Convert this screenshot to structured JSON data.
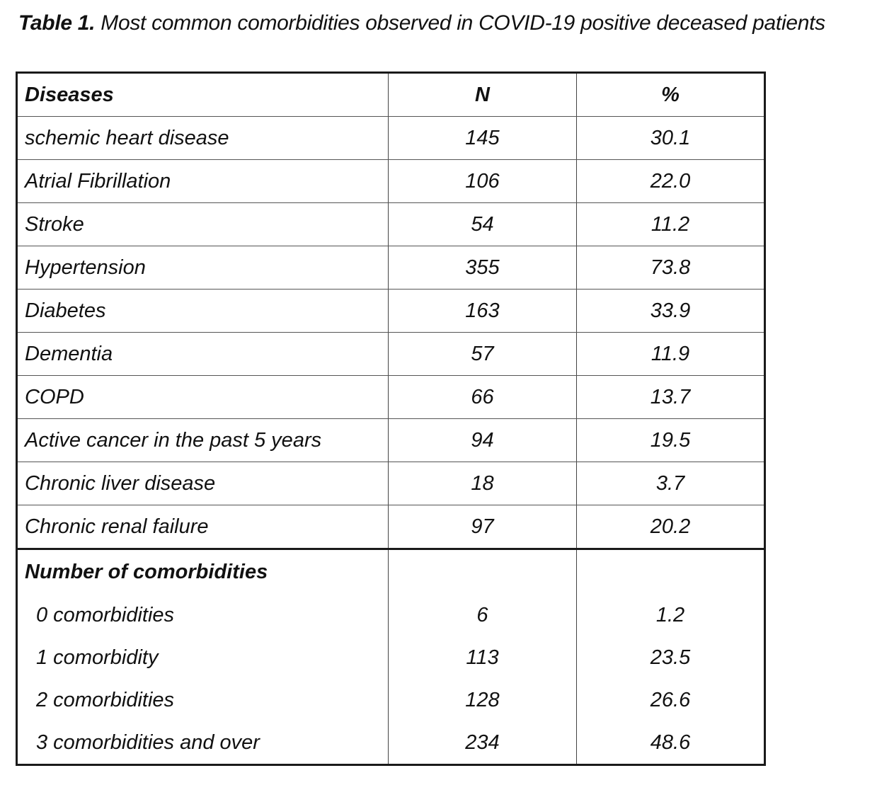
{
  "caption": {
    "label": "Table 1.",
    "text": "Most common comorbidities observed in COVID-19 positive deceased patients"
  },
  "table": {
    "headers": [
      "Diseases",
      "N",
      "%"
    ],
    "diseases": [
      {
        "name": "schemic heart disease",
        "n": "145",
        "pct": "30.1"
      },
      {
        "name": "Atrial Fibrillation",
        "n": "106",
        "pct": "22.0"
      },
      {
        "name": "Stroke",
        "n": "54",
        "pct": "11.2"
      },
      {
        "name": "Hypertension",
        "n": "355",
        "pct": "73.8"
      },
      {
        "name": "Diabetes",
        "n": "163",
        "pct": "33.9"
      },
      {
        "name": "Dementia",
        "n": "57",
        "pct": "11.9"
      },
      {
        "name": "COPD",
        "n": "66",
        "pct": "13.7"
      },
      {
        "name": "Active cancer in the past 5 years",
        "n": "94",
        "pct": "19.5"
      },
      {
        "name": "Chronic liver disease",
        "n": "18",
        "pct": "3.7"
      },
      {
        "name": "Chronic renal failure",
        "n": "97",
        "pct": "20.2"
      }
    ],
    "group_title": "Number of comorbidities",
    "comorbidity_counts": [
      {
        "name": "0 comorbidities",
        "n": "6",
        "pct": "1.2"
      },
      {
        "name": "1 comorbidity",
        "n": "113",
        "pct": "23.5"
      },
      {
        "name": "2 comorbidities",
        "n": "128",
        "pct": "26.6"
      },
      {
        "name": "3 comorbidities and over",
        "n": "234",
        "pct": "48.6"
      }
    ]
  }
}
